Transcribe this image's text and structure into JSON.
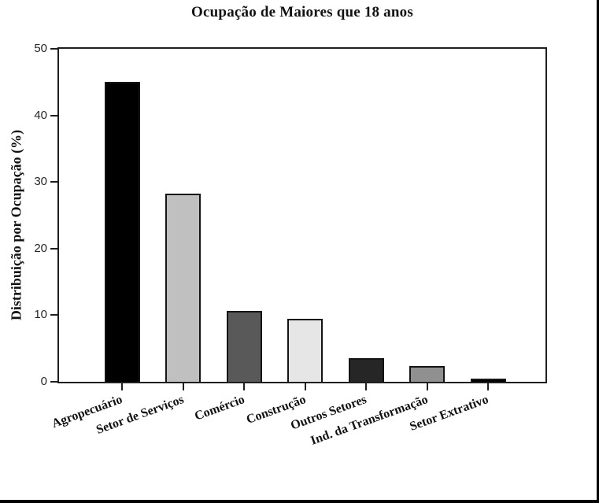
{
  "figure_title": "Ocupação de Maiores que 18 anos",
  "chart_data": {
    "type": "bar",
    "title": "Ocupação de Maiores que 18 anos",
    "xlabel": "",
    "ylabel": "Distribuição por Ocupação (%)",
    "categories": [
      "Agropecuário",
      "Setor de Serviços",
      "Comércio",
      "Construção",
      "Outros Setores",
      "Ind. da Transformação",
      "Setor Extrativo"
    ],
    "values": [
      45.0,
      28.2,
      10.6,
      9.4,
      3.5,
      2.4,
      0.5
    ],
    "bar_colors": [
      "#000000",
      "#c0c0c0",
      "#595959",
      "#e6e6e6",
      "#262626",
      "#909090",
      "#000000"
    ],
    "bar_edge_color": "#141414",
    "ylim": [
      0,
      50
    ],
    "yticks": [
      0,
      10,
      20,
      30,
      40,
      50
    ],
    "grid": false,
    "legend": "none",
    "plot_background": "#ffffff",
    "x_tick_label_rotation_deg": -20
  }
}
